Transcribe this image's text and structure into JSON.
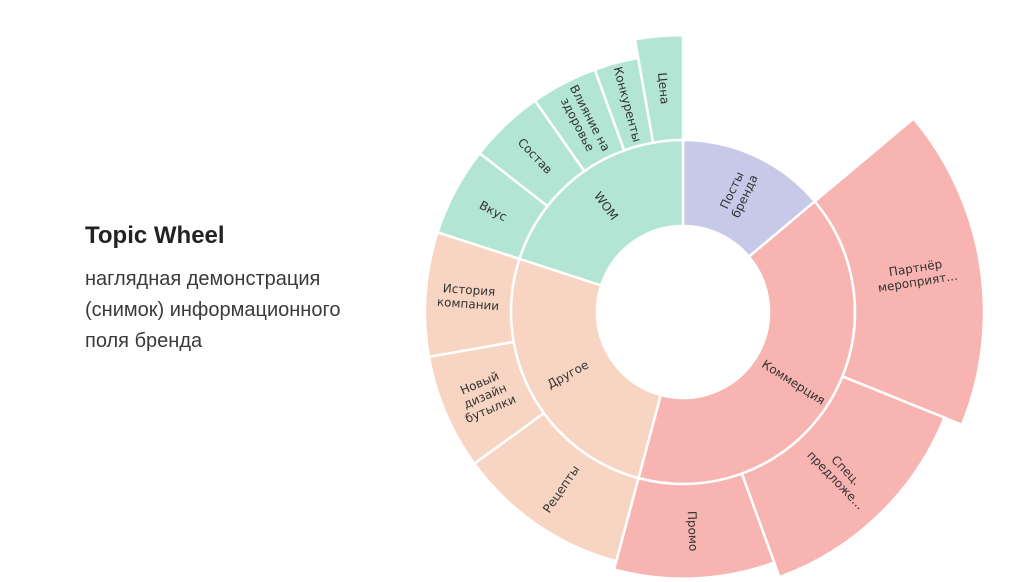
{
  "page": {
    "title": "Topic Wheel",
    "subtitle_lines": [
      "наглядная демонстрация",
      "(снимок) информационного",
      "поля бренда"
    ]
  },
  "chart_data": {
    "type": "sunburst",
    "title": "",
    "colors": {
      "Посты бренда": "#c7c9e8",
      "Коммерция": "#f7b4b0",
      "Другое": "#f8d5c2",
      "WOM": "#b2e5d4"
    },
    "segments": [
      {
        "name": "Посты бренда",
        "value": 50,
        "children": []
      },
      {
        "name": "Коммерция",
        "value": 145,
        "children": [
          {
            "name": "Партнёр мероприят...",
            "value": 62,
            "outer_scale": 1.5
          },
          {
            "name": "Спец. предложе...",
            "value": 48,
            "outer_scale": 1.28
          },
          {
            "name": "Промо",
            "value": 35,
            "outer_scale": 1.1
          }
        ]
      },
      {
        "name": "Другое",
        "value": 93,
        "children": [
          {
            "name": "Рецепты",
            "value": 39,
            "outer_scale": 1.0
          },
          {
            "name": "Новый дизайн бутылки",
            "value": 26,
            "outer_scale": 1.0
          },
          {
            "name": "История компании",
            "value": 28,
            "outer_scale": 1.0
          }
        ]
      },
      {
        "name": "WOM",
        "value": 72,
        "children": [
          {
            "name": "Вкус",
            "value": 20,
            "outer_scale": 1.0
          },
          {
            "name": "Состав",
            "value": 17,
            "outer_scale": 1.0
          },
          {
            "name": "Влияние на здоровье",
            "value": 15,
            "outer_scale": 1.0
          },
          {
            "name": "Конкуренты",
            "value": 10,
            "outer_scale": 1.0
          },
          {
            "name": "Цена",
            "value": 10,
            "outer_scale": 1.22
          }
        ]
      }
    ]
  }
}
